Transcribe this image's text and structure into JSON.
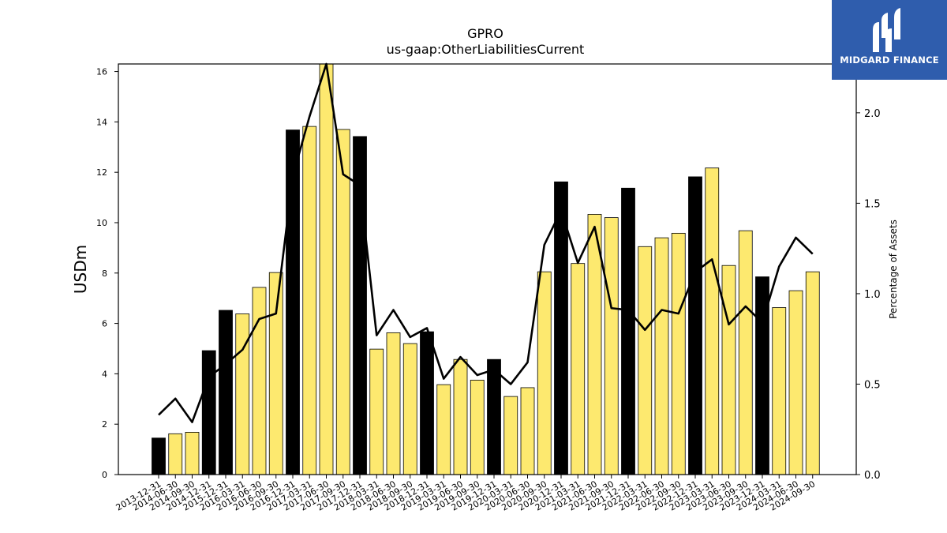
{
  "chart_data": {
    "type": "bar",
    "title": "GPRO",
    "subtitle": "us-gaap:OtherLiabilitiesCurrent",
    "ylabel": "USDm",
    "y2label": "Percentage of Assets",
    "ylim": [
      0,
      16.3
    ],
    "y2lim": [
      0,
      2.27
    ],
    "yticks": [
      0,
      2,
      4,
      6,
      8,
      10,
      12,
      14,
      16
    ],
    "y2ticks": [
      "0.0",
      "0.5",
      "1.0",
      "1.5",
      "2.0"
    ],
    "categories": [
      "2013-12-31",
      "2014-06-30",
      "2014-09-30",
      "2014-12-31",
      "2015-12-31",
      "2016-03-31",
      "2016-06-30",
      "2016-09-30",
      "2016-12-31",
      "2017-03-31",
      "2017-06-30",
      "2017-09-30",
      "2017-12-31",
      "2018-03-31",
      "2018-06-30",
      "2018-09-30",
      "2018-12-31",
      "2019-03-31",
      "2019-06-30",
      "2019-09-30",
      "2019-12-31",
      "2020-03-31",
      "2020-06-30",
      "2020-09-30",
      "2020-12-31",
      "2021-03-31",
      "2021-06-30",
      "2021-09-30",
      "2021-12-31",
      "2022-03-31",
      "2022-06-30",
      "2022-09-30",
      "2022-12-31",
      "2023-03-31",
      "2023-06-30",
      "2023-09-30",
      "2023-12-31",
      "2024-03-31",
      "2024-06-30",
      "2024-09-30"
    ],
    "series": [
      {
        "kind": "bar",
        "values": [
          1.45,
          1.62,
          1.68,
          4.92,
          6.52,
          6.38,
          7.43,
          8.02,
          13.68,
          13.82,
          16.5,
          13.7,
          13.42,
          4.98,
          5.63,
          5.2,
          5.67,
          3.57,
          4.57,
          3.75,
          4.57,
          3.1,
          3.45,
          8.05,
          11.62,
          8.38,
          10.33,
          10.2,
          11.37,
          9.05,
          9.4,
          9.58,
          11.82,
          12.17,
          8.3,
          9.68,
          7.85,
          6.63,
          7.3,
          8.05
        ]
      },
      {
        "kind": "line",
        "axis": "right",
        "values": [
          0.33,
          0.42,
          0.29,
          0.54,
          0.61,
          0.69,
          0.86,
          0.89,
          1.65,
          1.98,
          2.28,
          1.66,
          1.6,
          0.77,
          0.91,
          0.76,
          0.81,
          0.53,
          0.65,
          0.55,
          0.58,
          0.5,
          0.62,
          1.27,
          1.46,
          1.17,
          1.37,
          0.92,
          0.91,
          0.8,
          0.91,
          0.89,
          1.12,
          1.19,
          0.83,
          0.93,
          0.84,
          1.15,
          1.31,
          1.22
        ]
      }
    ],
    "year_end_color": "#000000",
    "quarter_color": "#fde96f",
    "line_color": "#000000",
    "grid": false
  },
  "logo": {
    "text": "MIDGARD FINANCE",
    "background": "#2f5dad"
  }
}
